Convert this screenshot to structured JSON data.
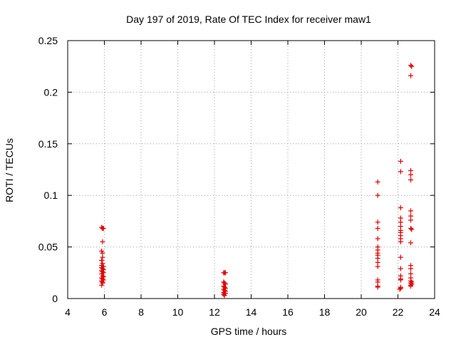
{
  "chart_data": {
    "type": "scatter",
    "title": "Day 197 of 2019, Rate Of TEC Index for receiver maw1",
    "xlabel": "GPS time / hours",
    "ylabel": "ROTI / TECUs",
    "xlim": [
      4,
      24
    ],
    "ylim": [
      0,
      0.25
    ],
    "xticks": [
      4,
      6,
      8,
      10,
      12,
      14,
      16,
      18,
      20,
      22,
      24
    ],
    "yticks": [
      0,
      0.05,
      0.1,
      0.15,
      0.2,
      0.25
    ],
    "ytick_labels": [
      "0",
      "0.05",
      "0.1",
      "0.15",
      "0.2",
      "0.25"
    ],
    "grid": true,
    "marker": "+",
    "color": "#e00000",
    "series": [
      {
        "name": "ROTI",
        "points": [
          [
            5.85,
            0.069
          ],
          [
            5.9,
            0.068
          ],
          [
            5.95,
            0.068
          ],
          [
            5.9,
            0.055
          ],
          [
            5.85,
            0.046
          ],
          [
            5.9,
            0.044
          ],
          [
            5.9,
            0.04
          ],
          [
            5.85,
            0.037
          ],
          [
            5.9,
            0.034
          ],
          [
            5.85,
            0.032
          ],
          [
            5.95,
            0.031
          ],
          [
            5.85,
            0.03
          ],
          [
            5.9,
            0.029
          ],
          [
            5.95,
            0.028
          ],
          [
            5.85,
            0.027
          ],
          [
            5.9,
            0.026
          ],
          [
            5.95,
            0.025
          ],
          [
            5.85,
            0.024
          ],
          [
            5.9,
            0.022
          ],
          [
            5.95,
            0.021
          ],
          [
            5.85,
            0.02
          ],
          [
            5.9,
            0.019
          ],
          [
            5.95,
            0.018
          ],
          [
            5.85,
            0.017
          ],
          [
            5.9,
            0.016
          ],
          [
            5.9,
            0.015
          ],
          [
            5.85,
            0.013
          ],
          [
            12.5,
            0.025
          ],
          [
            12.55,
            0.025
          ],
          [
            12.6,
            0.025
          ],
          [
            12.5,
            0.016
          ],
          [
            12.55,
            0.015
          ],
          [
            12.6,
            0.014
          ],
          [
            12.5,
            0.012
          ],
          [
            12.55,
            0.011
          ],
          [
            12.6,
            0.01
          ],
          [
            12.5,
            0.009
          ],
          [
            12.55,
            0.008
          ],
          [
            12.6,
            0.007
          ],
          [
            12.5,
            0.006
          ],
          [
            12.55,
            0.005
          ],
          [
            12.6,
            0.005
          ],
          [
            12.5,
            0.004
          ],
          [
            12.55,
            0.003
          ],
          [
            20.9,
            0.113
          ],
          [
            20.9,
            0.1
          ],
          [
            20.9,
            0.074
          ],
          [
            20.9,
            0.068
          ],
          [
            20.9,
            0.058
          ],
          [
            20.9,
            0.05
          ],
          [
            20.9,
            0.047
          ],
          [
            20.9,
            0.044
          ],
          [
            20.9,
            0.042
          ],
          [
            20.9,
            0.039
          ],
          [
            20.9,
            0.035
          ],
          [
            20.9,
            0.031
          ],
          [
            20.9,
            0.018
          ],
          [
            20.9,
            0.016
          ],
          [
            20.9,
            0.012
          ],
          [
            20.9,
            0.011
          ],
          [
            22.15,
            0.133
          ],
          [
            22.15,
            0.123
          ],
          [
            22.15,
            0.088
          ],
          [
            22.15,
            0.078
          ],
          [
            22.15,
            0.074
          ],
          [
            22.15,
            0.07
          ],
          [
            22.15,
            0.066
          ],
          [
            22.15,
            0.064
          ],
          [
            22.15,
            0.061
          ],
          [
            22.15,
            0.058
          ],
          [
            22.15,
            0.055
          ],
          [
            22.15,
            0.04
          ],
          [
            22.15,
            0.029
          ],
          [
            22.15,
            0.022
          ],
          [
            22.15,
            0.019
          ],
          [
            22.15,
            0.018
          ],
          [
            22.15,
            0.011
          ],
          [
            22.15,
            0.01
          ],
          [
            22.1,
            0.009
          ],
          [
            22.7,
            0.226
          ],
          [
            22.75,
            0.225
          ],
          [
            22.7,
            0.216
          ],
          [
            22.7,
            0.124
          ],
          [
            22.7,
            0.12
          ],
          [
            22.7,
            0.115
          ],
          [
            22.7,
            0.085
          ],
          [
            22.7,
            0.08
          ],
          [
            22.7,
            0.076
          ],
          [
            22.7,
            0.068
          ],
          [
            22.75,
            0.067
          ],
          [
            22.7,
            0.054
          ],
          [
            22.7,
            0.032
          ],
          [
            22.7,
            0.029
          ],
          [
            22.7,
            0.024
          ],
          [
            22.7,
            0.02
          ],
          [
            22.7,
            0.017
          ],
          [
            22.75,
            0.016
          ],
          [
            22.7,
            0.015
          ],
          [
            22.75,
            0.014
          ],
          [
            22.7,
            0.013
          ],
          [
            22.7,
            0.012
          ]
        ]
      }
    ]
  }
}
